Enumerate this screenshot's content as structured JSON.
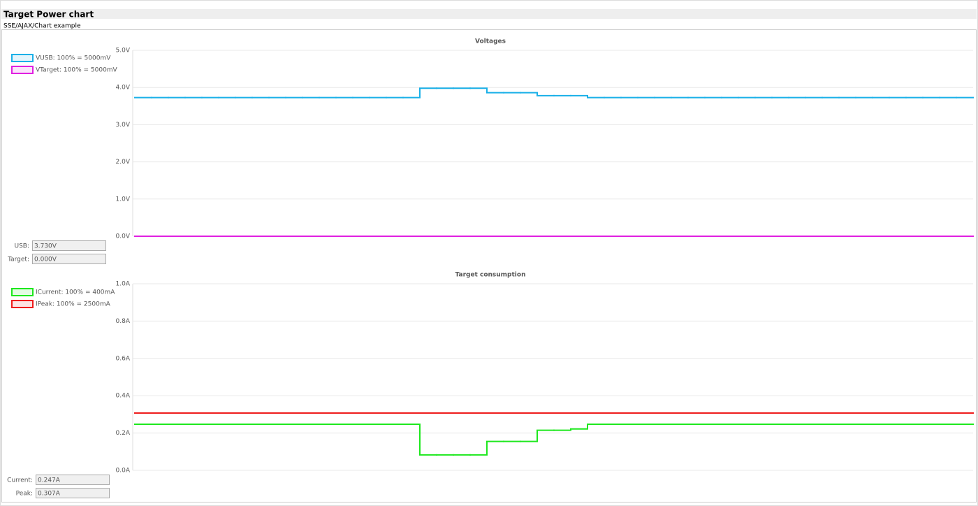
{
  "header": {
    "title": "Target Power chart",
    "subtitle": "SSE/AJAX/Chart example"
  },
  "chart_data": [
    {
      "type": "line",
      "title": "Voltages",
      "step": true,
      "grid": true,
      "ylim": [
        0,
        5
      ],
      "yticks": [
        {
          "value": 0,
          "label": "0.0V"
        },
        {
          "value": 1,
          "label": "1.0V"
        },
        {
          "value": 2,
          "label": "2.0V"
        },
        {
          "value": 3,
          "label": "3.0V"
        },
        {
          "value": 4,
          "label": "4.0V"
        },
        {
          "value": 5,
          "label": "5.0V"
        }
      ],
      "series": [
        {
          "name": "VUSB: 100% = 5000mV",
          "color": "#1ab0e8",
          "values": [
            3.73,
            3.73,
            3.73,
            3.73,
            3.73,
            3.73,
            3.73,
            3.73,
            3.73,
            3.73,
            3.73,
            3.73,
            3.73,
            3.73,
            3.73,
            3.73,
            3.73,
            3.98,
            3.98,
            3.98,
            3.98,
            3.86,
            3.86,
            3.86,
            3.78,
            3.78,
            3.78,
            3.73,
            3.73,
            3.73,
            3.73,
            3.73,
            3.73,
            3.73,
            3.73,
            3.73,
            3.73,
            3.73,
            3.73,
            3.73,
            3.73,
            3.73,
            3.73,
            3.73,
            3.73,
            3.73,
            3.73,
            3.73,
            3.73,
            3.73
          ]
        },
        {
          "name": "VTarget: 100% = 5000mV",
          "color": "#e020e0",
          "values": [
            0,
            0,
            0,
            0,
            0,
            0,
            0,
            0,
            0,
            0,
            0,
            0,
            0,
            0,
            0,
            0,
            0,
            0,
            0,
            0,
            0,
            0,
            0,
            0,
            0,
            0,
            0,
            0,
            0,
            0,
            0,
            0,
            0,
            0,
            0,
            0,
            0,
            0,
            0,
            0,
            0,
            0,
            0,
            0,
            0,
            0,
            0,
            0,
            0,
            0
          ]
        }
      ],
      "readouts": [
        {
          "label": "USB:",
          "value": "3.730V"
        },
        {
          "label": "Target:",
          "value": "0.000V"
        }
      ]
    },
    {
      "type": "line",
      "title": "Target consumption",
      "step": true,
      "grid": true,
      "ylim": [
        0,
        1
      ],
      "yticks": [
        {
          "value": 0,
          "label": "0.0A"
        },
        {
          "value": 0.2,
          "label": "0.2A"
        },
        {
          "value": 0.4,
          "label": "0.4A"
        },
        {
          "value": 0.6,
          "label": "0.6A"
        },
        {
          "value": 0.8,
          "label": "0.8A"
        },
        {
          "value": 1,
          "label": "1.0A"
        }
      ],
      "series": [
        {
          "name": "ICurrent: 100% = 400mA",
          "color": "#1ee81e",
          "values": [
            0.247,
            0.247,
            0.247,
            0.247,
            0.247,
            0.247,
            0.247,
            0.247,
            0.247,
            0.247,
            0.247,
            0.247,
            0.247,
            0.247,
            0.247,
            0.247,
            0.247,
            0.083,
            0.083,
            0.083,
            0.083,
            0.155,
            0.155,
            0.155,
            0.215,
            0.215,
            0.222,
            0.247,
            0.247,
            0.247,
            0.247,
            0.247,
            0.247,
            0.247,
            0.247,
            0.247,
            0.247,
            0.247,
            0.247,
            0.247,
            0.247,
            0.247,
            0.247,
            0.247,
            0.247,
            0.247,
            0.247,
            0.247,
            0.247,
            0.247
          ]
        },
        {
          "name": "IPeak: 100% = 2500mA",
          "color": "#ee1c1c",
          "values": [
            0.307,
            0.307,
            0.307,
            0.307,
            0.307,
            0.307,
            0.307,
            0.307,
            0.307,
            0.307,
            0.307,
            0.307,
            0.307,
            0.307,
            0.307,
            0.307,
            0.307,
            0.307,
            0.307,
            0.307,
            0.307,
            0.307,
            0.307,
            0.307,
            0.307,
            0.307,
            0.307,
            0.307,
            0.307,
            0.307,
            0.307,
            0.307,
            0.307,
            0.307,
            0.307,
            0.307,
            0.307,
            0.307,
            0.307,
            0.307,
            0.307,
            0.307,
            0.307,
            0.307,
            0.307,
            0.307,
            0.307,
            0.307,
            0.307,
            0.307
          ]
        }
      ],
      "readouts": [
        {
          "label": "Current:",
          "value": "0.247A"
        },
        {
          "label": "Peak:",
          "value": "0.307A"
        }
      ]
    }
  ]
}
